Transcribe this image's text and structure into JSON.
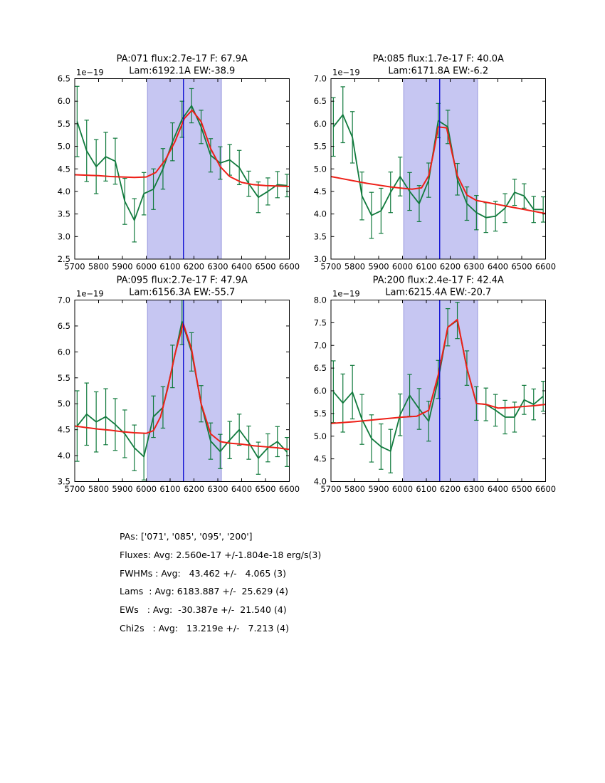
{
  "figure": {
    "background": "#ffffff",
    "colors": {
      "spectrum": "#117a3d",
      "error_bar": "#117a3d",
      "fit": "#ee1f17",
      "band_fill": "#c6c6f2",
      "band_edge": "#9696dc",
      "centroid_line": "#0000d0",
      "frame": "#000000",
      "text": "#000000"
    }
  },
  "chart_data": [
    {
      "type": "line",
      "title_line1": "PA:071 flux:2.7e-17 F: 67.9A",
      "title_line2": "Lam:6192.1A EW:-38.9",
      "offset_label": "1e−19",
      "xlim": [
        5700,
        6600
      ],
      "xticks": [
        5700,
        5800,
        5900,
        6000,
        6100,
        6200,
        6300,
        6400,
        6500,
        6600
      ],
      "ylim": [
        2.5,
        6.5
      ],
      "yticks": [
        2.5,
        3.0,
        3.5,
        4.0,
        4.5,
        5.0,
        5.5,
        6.0,
        6.5
      ],
      "band": [
        6005,
        6315
      ],
      "vline": 6156,
      "x": [
        5710,
        5750,
        5790,
        5830,
        5870,
        5910,
        5950,
        5990,
        6030,
        6070,
        6110,
        6150,
        6190,
        6230,
        6270,
        6310,
        6350,
        6390,
        6430,
        6470,
        6510,
        6550,
        6590
      ],
      "flux": [
        5.55,
        4.9,
        4.55,
        4.77,
        4.67,
        3.78,
        3.36,
        3.95,
        4.05,
        4.5,
        5.1,
        5.6,
        5.9,
        5.43,
        4.8,
        4.63,
        4.7,
        4.53,
        4.17,
        3.87,
        4.0,
        4.15,
        4.13
      ],
      "err": [
        0.78,
        0.68,
        0.6,
        0.54,
        0.51,
        0.51,
        0.48,
        0.47,
        0.45,
        0.45,
        0.42,
        0.4,
        0.38,
        0.37,
        0.37,
        0.36,
        0.34,
        0.38,
        0.28,
        0.34,
        0.3,
        0.29,
        0.25
      ],
      "fit_x": [
        5700,
        5750,
        5800,
        5850,
        5900,
        5950,
        6000,
        6040,
        6080,
        6120,
        6160,
        6192,
        6230,
        6270,
        6310,
        6350,
        6400,
        6450,
        6500,
        6550,
        6600
      ],
      "fit_y": [
        4.37,
        4.36,
        4.35,
        4.33,
        4.32,
        4.31,
        4.32,
        4.42,
        4.7,
        5.1,
        5.62,
        5.8,
        5.55,
        4.95,
        4.55,
        4.33,
        4.2,
        4.15,
        4.13,
        4.12,
        4.11
      ]
    },
    {
      "type": "line",
      "title_line1": "PA:085 flux:1.7e-17 F: 40.0A",
      "title_line2": "Lam:6171.8A EW:-6.2",
      "offset_label": "1e−19",
      "xlim": [
        5700,
        6600
      ],
      "xticks": [
        5700,
        5800,
        5900,
        6000,
        6100,
        6200,
        6300,
        6400,
        6500,
        6600
      ],
      "ylim": [
        3.0,
        7.0
      ],
      "yticks": [
        3.0,
        3.5,
        4.0,
        4.5,
        5.0,
        5.5,
        6.0,
        6.5,
        7.0
      ],
      "band": [
        6005,
        6315
      ],
      "vline": 6156,
      "x": [
        5710,
        5750,
        5790,
        5830,
        5870,
        5910,
        5950,
        5990,
        6030,
        6070,
        6110,
        6150,
        6190,
        6230,
        6270,
        6310,
        6350,
        6390,
        6430,
        6470,
        6510,
        6550,
        6590
      ],
      "flux": [
        5.93,
        6.2,
        5.7,
        4.4,
        3.97,
        4.07,
        4.48,
        4.83,
        4.5,
        4.23,
        4.75,
        6.07,
        5.93,
        4.77,
        4.23,
        4.03,
        3.92,
        3.95,
        4.13,
        4.48,
        4.4,
        4.1,
        4.1
      ],
      "err": [
        0.65,
        0.62,
        0.57,
        0.53,
        0.51,
        0.5,
        0.45,
        0.43,
        0.42,
        0.4,
        0.38,
        0.38,
        0.37,
        0.35,
        0.37,
        0.38,
        0.33,
        0.33,
        0.32,
        0.29,
        0.27,
        0.29,
        0.28
      ],
      "fit_x": [
        5700,
        5750,
        5800,
        5850,
        5900,
        5950,
        6000,
        6040,
        6080,
        6110,
        6130,
        6150,
        6185,
        6210,
        6230,
        6270,
        6310,
        6350,
        6400,
        6450,
        6500,
        6550,
        6600
      ],
      "fit_y": [
        4.83,
        4.78,
        4.73,
        4.68,
        4.64,
        4.6,
        4.57,
        4.55,
        4.58,
        4.85,
        5.35,
        5.93,
        5.91,
        5.3,
        4.85,
        4.42,
        4.3,
        4.26,
        4.21,
        4.16,
        4.11,
        4.06,
        4.01
      ]
    },
    {
      "type": "line",
      "title_line1": "PA:095 flux:2.7e-17 F: 47.9A",
      "title_line2": "Lam:6156.3A EW:-55.7",
      "offset_label": "1e−19",
      "xlim": [
        5700,
        6600
      ],
      "xticks": [
        5700,
        5800,
        5900,
        6000,
        6100,
        6200,
        6300,
        6400,
        6500,
        6600
      ],
      "ylim": [
        3.5,
        7.0
      ],
      "yticks": [
        3.5,
        4.0,
        4.5,
        5.0,
        5.5,
        6.0,
        6.5,
        7.0
      ],
      "band": [
        6005,
        6315
      ],
      "vline": 6156,
      "x": [
        5710,
        5750,
        5790,
        5830,
        5870,
        5910,
        5950,
        5990,
        6030,
        6070,
        6110,
        6150,
        6190,
        6230,
        6270,
        6310,
        6350,
        6390,
        6430,
        6470,
        6510,
        6550,
        6590
      ],
      "flux": [
        4.57,
        4.8,
        4.65,
        4.75,
        4.6,
        4.42,
        4.15,
        3.98,
        4.75,
        4.93,
        5.72,
        6.59,
        6.0,
        5.0,
        4.28,
        4.08,
        4.3,
        4.5,
        4.25,
        3.95,
        4.15,
        4.27,
        4.07
      ],
      "err": [
        0.68,
        0.6,
        0.58,
        0.54,
        0.5,
        0.46,
        0.44,
        0.45,
        0.4,
        0.4,
        0.41,
        0.45,
        0.37,
        0.35,
        0.35,
        0.33,
        0.36,
        0.3,
        0.32,
        0.31,
        0.27,
        0.29,
        0.28
      ],
      "fit_x": [
        5700,
        5750,
        5800,
        5850,
        5900,
        5950,
        6000,
        6030,
        6060,
        6090,
        6120,
        6155,
        6190,
        6230,
        6270,
        6310,
        6350,
        6400,
        6450,
        6500,
        6550,
        6600
      ],
      "fit_y": [
        4.57,
        4.54,
        4.51,
        4.49,
        4.46,
        4.44,
        4.43,
        4.48,
        4.75,
        5.3,
        5.95,
        6.55,
        6.05,
        5.0,
        4.42,
        4.27,
        4.24,
        4.22,
        4.19,
        4.17,
        4.15,
        4.12
      ]
    },
    {
      "type": "line",
      "title_line1": "PA:200 flux:2.4e-17 F: 42.4A",
      "title_line2": "Lam:6215.4A EW:-20.7",
      "offset_label": "1e−19",
      "xlim": [
        5700,
        6600
      ],
      "xticks": [
        5700,
        5800,
        5900,
        6000,
        6100,
        6200,
        6300,
        6400,
        6500,
        6600
      ],
      "ylim": [
        4.0,
        8.0
      ],
      "yticks": [
        4.0,
        4.5,
        5.0,
        5.5,
        6.0,
        6.5,
        7.0,
        7.5,
        8.0
      ],
      "band": [
        6005,
        6315
      ],
      "vline": 6156,
      "x": [
        5710,
        5750,
        5790,
        5830,
        5870,
        5910,
        5950,
        5990,
        6030,
        6070,
        6110,
        6150,
        6190,
        6230,
        6270,
        6310,
        6350,
        6390,
        6430,
        6470,
        6510,
        6550,
        6590
      ],
      "flux": [
        5.98,
        5.73,
        5.97,
        5.37,
        4.95,
        4.77,
        4.67,
        5.47,
        5.9,
        5.6,
        5.33,
        6.25,
        7.4,
        7.55,
        6.5,
        5.72,
        5.7,
        5.57,
        5.42,
        5.42,
        5.8,
        5.7,
        5.88
      ],
      "err": [
        0.68,
        0.64,
        0.59,
        0.55,
        0.52,
        0.5,
        0.48,
        0.46,
        0.46,
        0.45,
        0.44,
        0.42,
        0.41,
        0.4,
        0.38,
        0.37,
        0.36,
        0.35,
        0.37,
        0.33,
        0.32,
        0.34,
        0.33
      ],
      "fit_x": [
        5700,
        5800,
        5900,
        6000,
        6060,
        6110,
        6150,
        6190,
        6230,
        6270,
        6310,
        6350,
        6400,
        6450,
        6500,
        6550,
        6600
      ],
      "fit_y": [
        5.28,
        5.32,
        5.37,
        5.42,
        5.44,
        5.57,
        6.35,
        7.4,
        7.57,
        6.5,
        5.72,
        5.7,
        5.62,
        5.63,
        5.65,
        5.67,
        5.7
      ]
    }
  ],
  "summary": {
    "lines": [
      "PAs: ['071', '085', '095', '200']",
      "Fluxes: Avg: 2.560e-17 +/-1.804e-18 erg/s(3)",
      "FWHMs : Avg:   43.462 +/-   4.065 (3)",
      "Lams  : Avg: 6183.887 +/-  25.629 (4)",
      "EWs   : Avg:  -30.387e +/-  21.540 (4)",
      "Chi2s   : Avg:   13.219e +/-   7.213 (4)"
    ]
  }
}
